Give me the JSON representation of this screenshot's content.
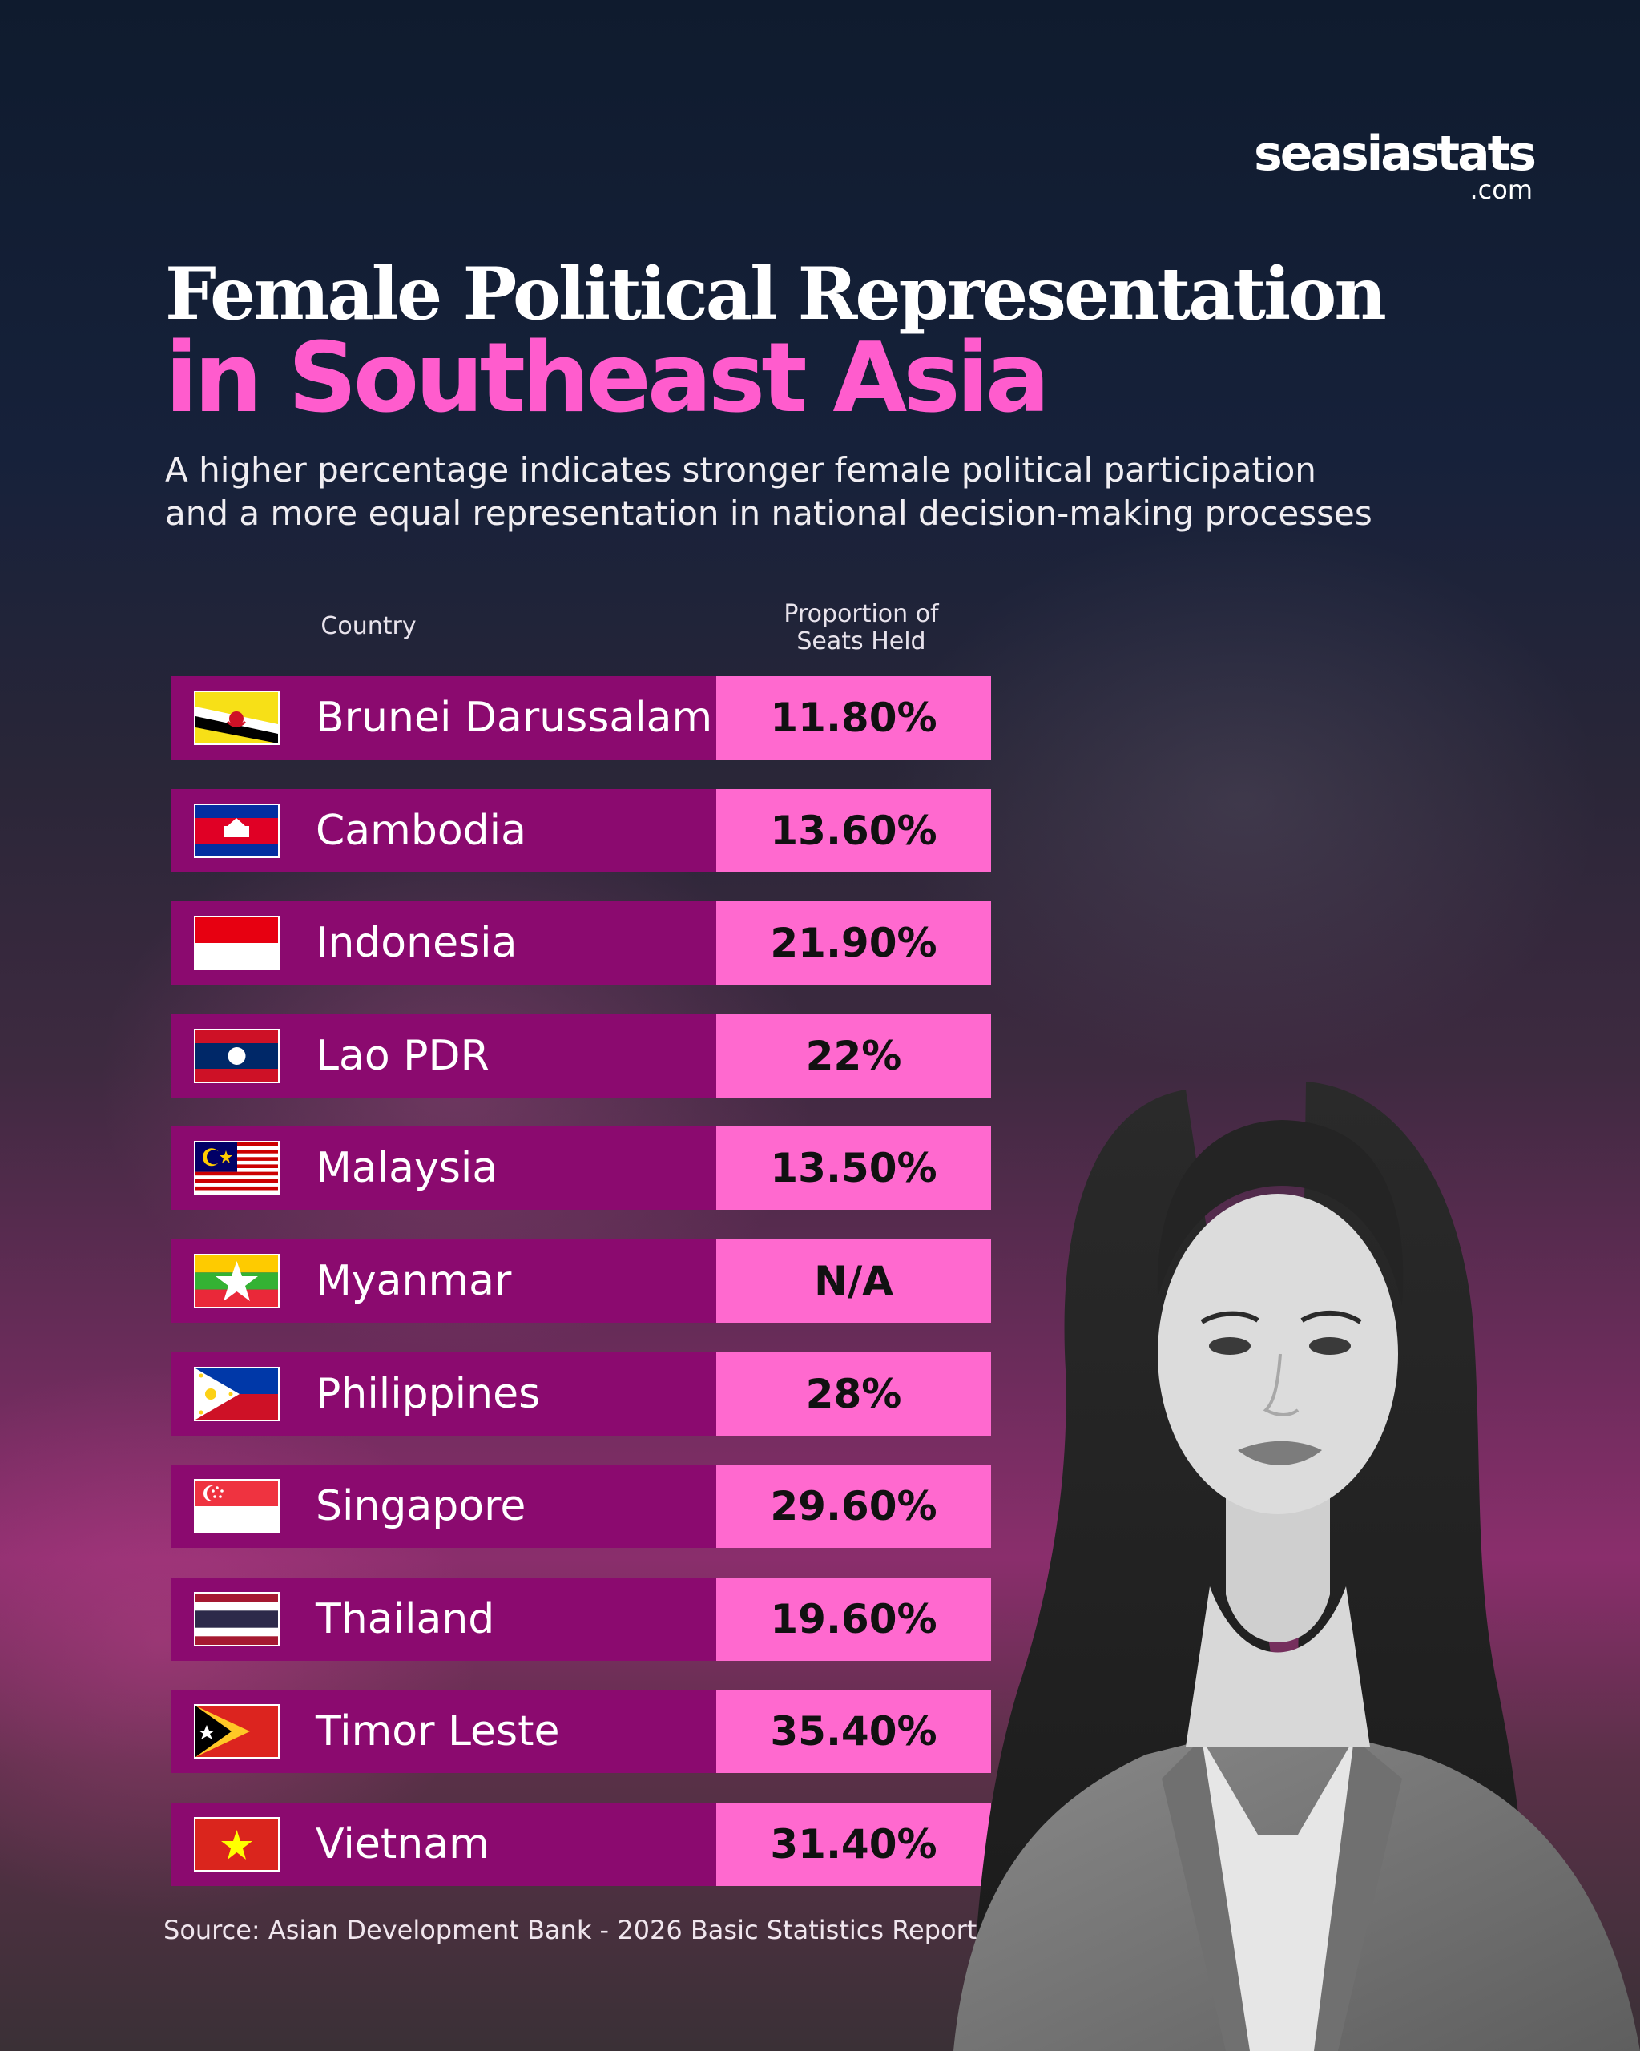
{
  "brand": {
    "name": "seasiastats",
    "suffix": ".com"
  },
  "title": {
    "line1": "Female Political Representation",
    "line2": "in Southeast Asia"
  },
  "subtitle": {
    "line1": "A higher percentage indicates stronger female political participation",
    "line2": "and a more equal representation in national decision-making processes"
  },
  "table": {
    "header_country": "Country",
    "header_value": "Proportion of\nSeats Held"
  },
  "source": "Source: Asian Development Bank - 2026 Basic Statistics Report",
  "colors": {
    "name_cell": "#8b0a6f",
    "value_cell": "#ff69cf",
    "accent_title": "#ff5ccd"
  },
  "chart_data": {
    "type": "table",
    "columns": [
      "Country",
      "Proportion of Seats Held"
    ],
    "rows": [
      {
        "country": "Brunei Darussalam",
        "label": "11.80%",
        "value": 11.8,
        "flag_icon": "brunei-flag-icon"
      },
      {
        "country": "Cambodia",
        "label": "13.60%",
        "value": 13.6,
        "flag_icon": "cambodia-flag-icon"
      },
      {
        "country": "Indonesia",
        "label": "21.90%",
        "value": 21.9,
        "flag_icon": "indonesia-flag-icon"
      },
      {
        "country": "Lao PDR",
        "label": "22%",
        "value": 22,
        "flag_icon": "laos-flag-icon"
      },
      {
        "country": "Malaysia",
        "label": "13.50%",
        "value": 13.5,
        "flag_icon": "malaysia-flag-icon"
      },
      {
        "country": "Myanmar",
        "label": "N/A",
        "value": null,
        "flag_icon": "myanmar-flag-icon"
      },
      {
        "country": "Philippines",
        "label": "28%",
        "value": 28,
        "flag_icon": "philippines-flag-icon"
      },
      {
        "country": "Singapore",
        "label": "29.60%",
        "value": 29.6,
        "flag_icon": "singapore-flag-icon"
      },
      {
        "country": "Thailand",
        "label": "19.60%",
        "value": 19.6,
        "flag_icon": "thailand-flag-icon"
      },
      {
        "country": "Timor Leste",
        "label": "35.40%",
        "value": 35.4,
        "flag_icon": "timor-leste-flag-icon"
      },
      {
        "country": "Vietnam",
        "label": "31.40%",
        "value": 31.4,
        "flag_icon": "vietnam-flag-icon"
      }
    ]
  }
}
